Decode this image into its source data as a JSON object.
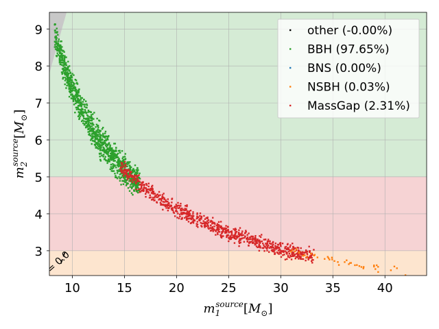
{
  "chart_data": {
    "type": "scatter",
    "xlabel": "m_1^{source}[M_\\odot]",
    "ylabel": "m_2^{source}[M_\\odot]",
    "xlim": [
      7.8,
      44
    ],
    "ylim": [
      2.33,
      9.45
    ],
    "xticks": [
      10,
      15,
      20,
      25,
      30,
      35,
      40
    ],
    "yticks": [
      3,
      4,
      5,
      6,
      7,
      8,
      9
    ],
    "grid": true,
    "legend_position": "top-right",
    "legend": [
      {
        "label": "other (-0.00%)",
        "color": "#000000"
      },
      {
        "label": "BBH (97.65%)",
        "color": "#2ca02c"
      },
      {
        "label": "BNS (0.00%)",
        "color": "#1f77b4"
      },
      {
        "label": "NSBH (0.03%)",
        "color": "#ff7f0e"
      },
      {
        "label": "MassGap (2.31%)",
        "color": "#d62728"
      }
    ],
    "regions": [
      {
        "name": "BBH",
        "y_from": 5,
        "y_to": 9.45,
        "color": "#d5ebd5"
      },
      {
        "name": "MassGap",
        "y_from": 3,
        "y_to": 5,
        "color": "#f6d3d4"
      },
      {
        "name": "NSBH",
        "y_from": 2.33,
        "y_to": 3,
        "color": "#fde5cf"
      }
    ],
    "excluded_region": {
      "description": "m2 > m1",
      "color": "#c8c8c8"
    },
    "contour_label": "= 0.0",
    "chirp_curve": {
      "chirp_mass": 7.47,
      "x_from": 9.0,
      "x_to": 42.0
    },
    "series": [
      {
        "name": "BBH",
        "color": "#2ca02c",
        "x_from": 8.3,
        "x_to": 16.5,
        "spread": 0.2,
        "density": 9
      },
      {
        "name": "MassGap",
        "color": "#d62728",
        "x_from": 14.6,
        "x_to": 33.2,
        "spread": 0.1,
        "density": 3
      },
      {
        "name": "NSBH",
        "color": "#ff7f0e",
        "x_from": 30.8,
        "x_to": 42.0,
        "spread": 0.05,
        "density": 0.25
      }
    ]
  }
}
